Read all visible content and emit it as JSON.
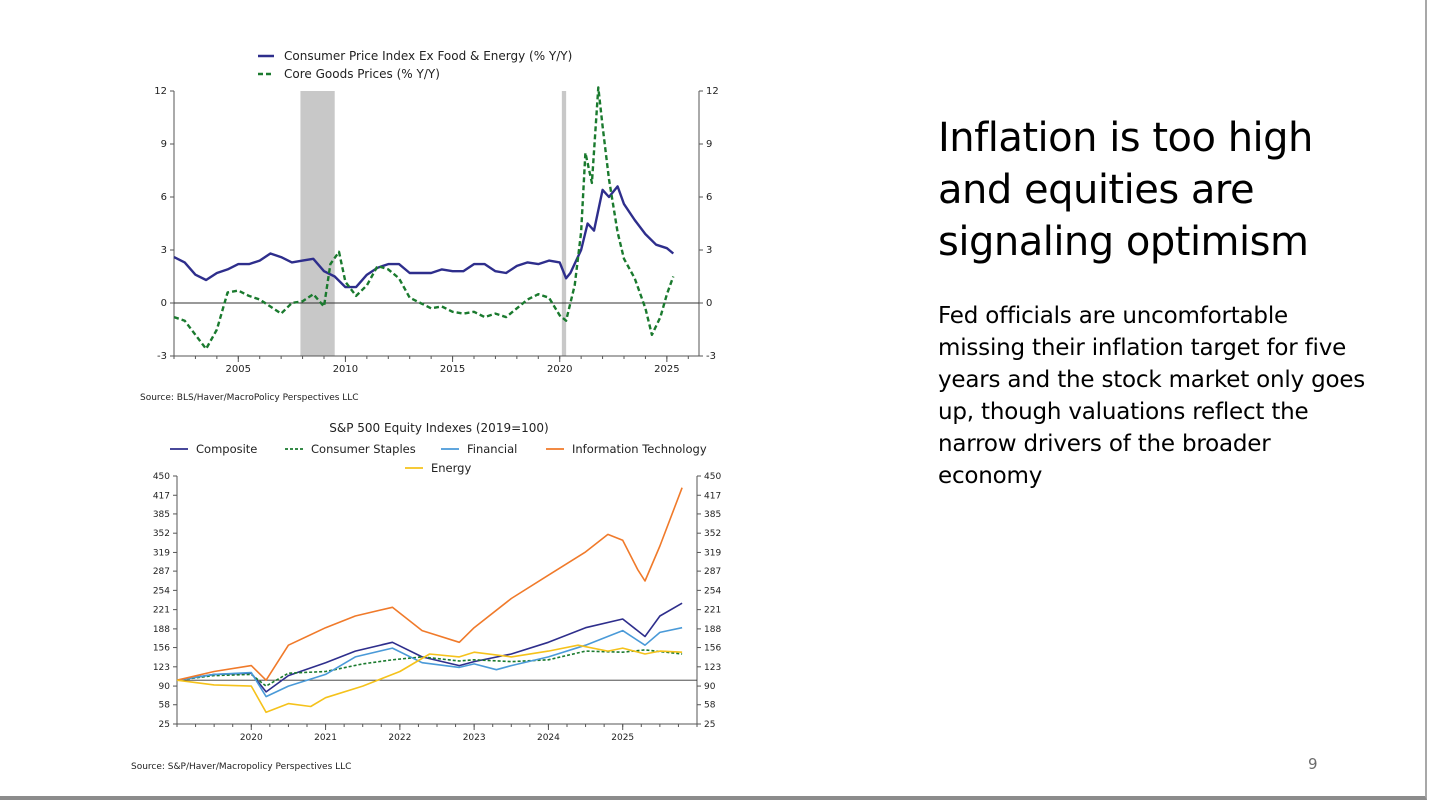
{
  "slide": {
    "title": "Inflation is too high and equities are signaling optimism",
    "body": "Fed officials are uncomfortable missing their inflation target for five years and the stock market only goes up, though valuations reflect the narrow drivers of the broader economy",
    "page_number": "9"
  },
  "colors": {
    "core_cpi": "#2e2e8c",
    "core_goods": "#1a7a2e",
    "composite": "#2e2e8c",
    "staples": "#1a7a2e",
    "financial": "#4a9ad8",
    "info_tech": "#f07a2a",
    "energy": "#f5c21b",
    "recession": "#c8c8c8"
  },
  "chart_data": [
    {
      "type": "line",
      "title": "",
      "source": "Source:  BLS/Haver/MacroPolicy Perspectives LLC",
      "x_ticks": [
        2005,
        2010,
        2015,
        2020,
        2025
      ],
      "xlim": [
        2002,
        2026.5
      ],
      "ylim": [
        -3,
        12
      ],
      "y_ticks": [
        -3,
        0,
        3,
        6,
        9,
        12
      ],
      "y_tick_labels_left": [
        "-3",
        "0",
        "3",
        "6",
        "9",
        "12"
      ],
      "y_tick_labels_right": [
        "-3",
        "0",
        "3",
        "6",
        "9",
        "12"
      ],
      "recession_bands": [
        [
          2007.9,
          2009.5
        ],
        [
          2020.1,
          2020.3
        ]
      ],
      "series": [
        {
          "name": "Consumer Price Index Ex Food & Energy (% Y/Y)",
          "style": "solid",
          "x": [
            2002,
            2002.5,
            2003,
            2003.5,
            2004,
            2004.5,
            2005,
            2005.5,
            2006,
            2006.5,
            2007,
            2007.5,
            2008,
            2008.5,
            2009,
            2009.5,
            2010,
            2010.5,
            2011,
            2011.5,
            2012,
            2012.5,
            2013,
            2013.5,
            2014,
            2014.5,
            2015,
            2015.5,
            2016,
            2016.5,
            2017,
            2017.5,
            2018,
            2018.5,
            2019,
            2019.5,
            2020,
            2020.3,
            2020.5,
            2021,
            2021.3,
            2021.6,
            2022,
            2022.3,
            2022.7,
            2023,
            2023.5,
            2024,
            2024.5,
            2025,
            2025.3
          ],
          "y": [
            2.6,
            2.3,
            1.6,
            1.3,
            1.7,
            1.9,
            2.2,
            2.2,
            2.4,
            2.8,
            2.6,
            2.3,
            2.4,
            2.5,
            1.8,
            1.5,
            0.9,
            0.9,
            1.6,
            2.0,
            2.2,
            2.2,
            1.7,
            1.7,
            1.7,
            1.9,
            1.8,
            1.8,
            2.2,
            2.2,
            1.8,
            1.7,
            2.1,
            2.3,
            2.2,
            2.4,
            2.3,
            1.4,
            1.7,
            3.0,
            4.5,
            4.1,
            6.4,
            6.0,
            6.6,
            5.6,
            4.7,
            3.9,
            3.3,
            3.1,
            2.8
          ]
        },
        {
          "name": "Core Goods Prices (% Y/Y)",
          "style": "dashed",
          "x": [
            2002,
            2002.5,
            2003,
            2003.5,
            2004,
            2004.5,
            2005,
            2005.5,
            2006,
            2006.5,
            2007,
            2007.5,
            2008,
            2008.5,
            2009,
            2009.3,
            2009.7,
            2010,
            2010.5,
            2011,
            2011.5,
            2012,
            2012.5,
            2013,
            2013.5,
            2014,
            2014.5,
            2015,
            2015.5,
            2016,
            2016.5,
            2017,
            2017.5,
            2018,
            2018.5,
            2019,
            2019.5,
            2020,
            2020.3,
            2020.7,
            2021,
            2021.2,
            2021.5,
            2021.8,
            2022,
            2022.3,
            2022.7,
            2023,
            2023.5,
            2024,
            2024.3,
            2024.7,
            2025,
            2025.3
          ],
          "y": [
            -0.8,
            -1.0,
            -1.8,
            -2.6,
            -1.5,
            0.6,
            0.7,
            0.4,
            0.2,
            -0.2,
            -0.6,
            0.0,
            0.1,
            0.5,
            -0.2,
            2.2,
            2.9,
            1.2,
            0.4,
            1.0,
            2.1,
            1.9,
            1.4,
            0.3,
            0.0,
            -0.3,
            -0.2,
            -0.5,
            -0.6,
            -0.5,
            -0.8,
            -0.6,
            -0.8,
            -0.3,
            0.2,
            0.5,
            0.3,
            -0.7,
            -1.0,
            1.0,
            4.0,
            8.5,
            6.8,
            12.2,
            10.0,
            7.0,
            4.0,
            2.5,
            1.4,
            -0.3,
            -1.8,
            -0.8,
            0.5,
            1.5
          ]
        }
      ]
    },
    {
      "type": "line",
      "title": "S&P 500 Equity Indexes (2019=100)",
      "source": "Source:  S&P/Haver/Macropolicy Perspectives LLC",
      "x_ticks": [
        2020,
        2021,
        2022,
        2023,
        2024,
        2025
      ],
      "xlim": [
        2019,
        2026
      ],
      "ylim": [
        25,
        450
      ],
      "y_ticks": [
        25,
        58,
        90,
        123,
        156,
        188,
        221,
        254,
        287,
        319,
        352,
        385,
        417,
        450
      ],
      "y_tick_labels_left": [
        "25",
        "58",
        "90",
        "123",
        "156",
        "188",
        "221",
        "254",
        "287",
        "319",
        "352",
        "385",
        "417",
        "450"
      ],
      "y_tick_labels_right": [
        "25",
        "58",
        "90",
        "123",
        "156",
        "188",
        "221",
        "254",
        "287",
        "319",
        "352",
        "385",
        "417",
        "450"
      ],
      "reference_line": 100,
      "series": [
        {
          "name": "Composite",
          "style": "solid",
          "x": [
            2019,
            2019.5,
            2020,
            2020.2,
            2020.5,
            2021,
            2021.4,
            2021.9,
            2022.3,
            2022.8,
            2023,
            2023.5,
            2024,
            2024.5,
            2025,
            2025.3,
            2025.5,
            2025.8
          ],
          "y": [
            100,
            110,
            112,
            80,
            108,
            130,
            150,
            165,
            140,
            125,
            132,
            145,
            165,
            190,
            205,
            175,
            210,
            232
          ]
        },
        {
          "name": "Consumer Staples",
          "style": "dashed",
          "x": [
            2019,
            2019.5,
            2020,
            2020.2,
            2020.5,
            2021,
            2021.5,
            2021.9,
            2022.3,
            2022.8,
            2023,
            2023.5,
            2024,
            2024.5,
            2025,
            2025.3,
            2025.8
          ],
          "y": [
            100,
            108,
            110,
            90,
            112,
            115,
            128,
            135,
            140,
            133,
            135,
            132,
            135,
            150,
            148,
            152,
            145
          ]
        },
        {
          "name": "Financial",
          "style": "solid",
          "x": [
            2019,
            2019.5,
            2020,
            2020.2,
            2020.5,
            2021,
            2021.4,
            2021.9,
            2022.3,
            2022.8,
            2023,
            2023.3,
            2023.5,
            2024,
            2024.5,
            2025,
            2025.3,
            2025.5,
            2025.8
          ],
          "y": [
            100,
            110,
            113,
            72,
            90,
            110,
            140,
            155,
            130,
            122,
            128,
            118,
            125,
            140,
            160,
            185,
            160,
            182,
            190
          ]
        },
        {
          "name": "Information Technology",
          "style": "solid",
          "x": [
            2019,
            2019.5,
            2020,
            2020.2,
            2020.5,
            2021,
            2021.4,
            2021.9,
            2022.3,
            2022.8,
            2023,
            2023.5,
            2024,
            2024.5,
            2024.8,
            2025,
            2025.2,
            2025.3,
            2025.5,
            2025.8
          ],
          "y": [
            100,
            115,
            125,
            100,
            160,
            190,
            210,
            225,
            185,
            165,
            190,
            240,
            280,
            320,
            350,
            340,
            290,
            270,
            330,
            430
          ]
        },
        {
          "name": "Energy",
          "style": "solid",
          "x": [
            2019,
            2019.5,
            2020,
            2020.2,
            2020.5,
            2020.8,
            2021,
            2021.5,
            2022,
            2022.4,
            2022.8,
            2023,
            2023.5,
            2024,
            2024.4,
            2024.8,
            2025,
            2025.3,
            2025.5,
            2025.8
          ],
          "y": [
            100,
            92,
            90,
            45,
            60,
            55,
            70,
            90,
            115,
            145,
            140,
            148,
            140,
            150,
            160,
            150,
            155,
            145,
            150,
            148
          ]
        }
      ]
    }
  ]
}
